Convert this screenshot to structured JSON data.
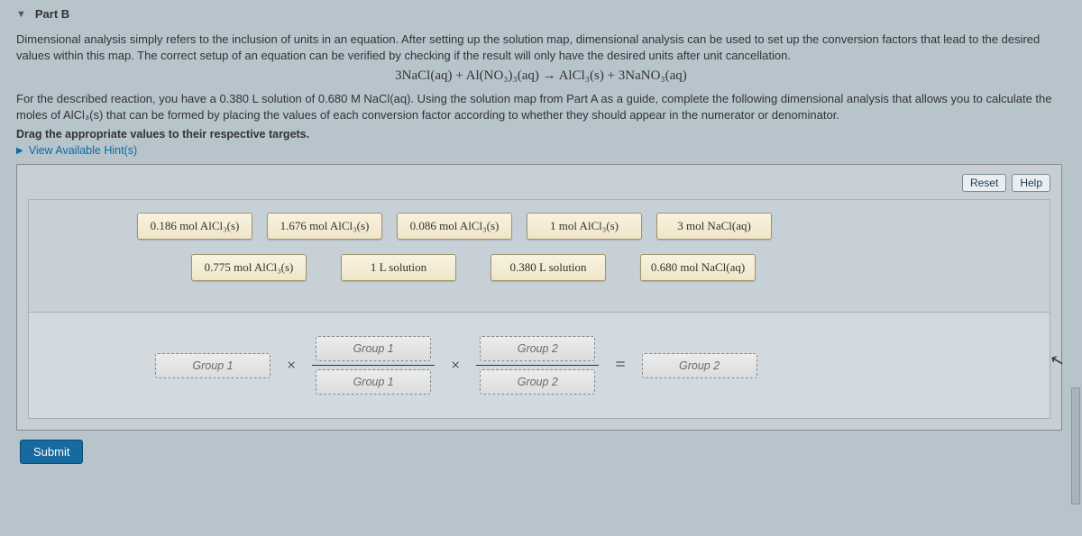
{
  "header": {
    "part_label": "Part B"
  },
  "intro_text": "Dimensional analysis simply refers to the inclusion of units in an equation. After setting up the solution map, dimensional analysis can be used to set up the conversion factors that lead to the desired values within this map. The correct setup of an equation can be verified by checking if the result will only have the desired units after unit cancellation.",
  "equation": {
    "lhs": "3NaCl(aq) + Al(NO₃)₃(aq)",
    "arrow": "→",
    "rhs": "AlCl₃(s) + 3NaNO₃(aq)"
  },
  "instruction_1": "For the described reaction, you have a 0.380 L solution of 0.680 M NaCl(aq). Using the solution map from Part A as a guide, complete the following dimensional analysis that allows you to calculate the moles of AlCl₃(s) that can be formed by placing the values of each conversion factor according to whether they should appear in the numerator or denominator.",
  "drag_label": "Drag the appropriate values to their respective targets.",
  "hints_label": "View Available Hint(s)",
  "buttons": {
    "reset": "Reset",
    "help": "Help",
    "submit": "Submit"
  },
  "tiles_row1": [
    "0.186 mol AlCl₃(s)",
    "1.676 mol AlCl₃(s)",
    "0.086 mol AlCl₃(s)",
    "1 mol AlCl₃(s)",
    "3 mol NaCl(aq)"
  ],
  "tiles_row2": [
    "0.775 mol AlCl₃(s)",
    "1 L solution",
    "0.380 L solution",
    "0.680 mol NaCl(aq)"
  ],
  "slots": {
    "g1_single": "Group 1",
    "g1_num": "Group 1",
    "g1_den": "Group 1",
    "g2_num": "Group 2",
    "g2_den": "Group 2",
    "g2_result": "Group 2"
  },
  "operators": {
    "times": "×",
    "equals": "="
  },
  "colors": {
    "page_bg": "#b8c4cc",
    "tile_bg_top": "#f8f2df",
    "tile_bg_bot": "#efe6c9",
    "tile_border": "#a0946e",
    "panel_bg": "#c7cfd5",
    "link": "#0b6aa2",
    "submit_bg": "#166a9f"
  }
}
